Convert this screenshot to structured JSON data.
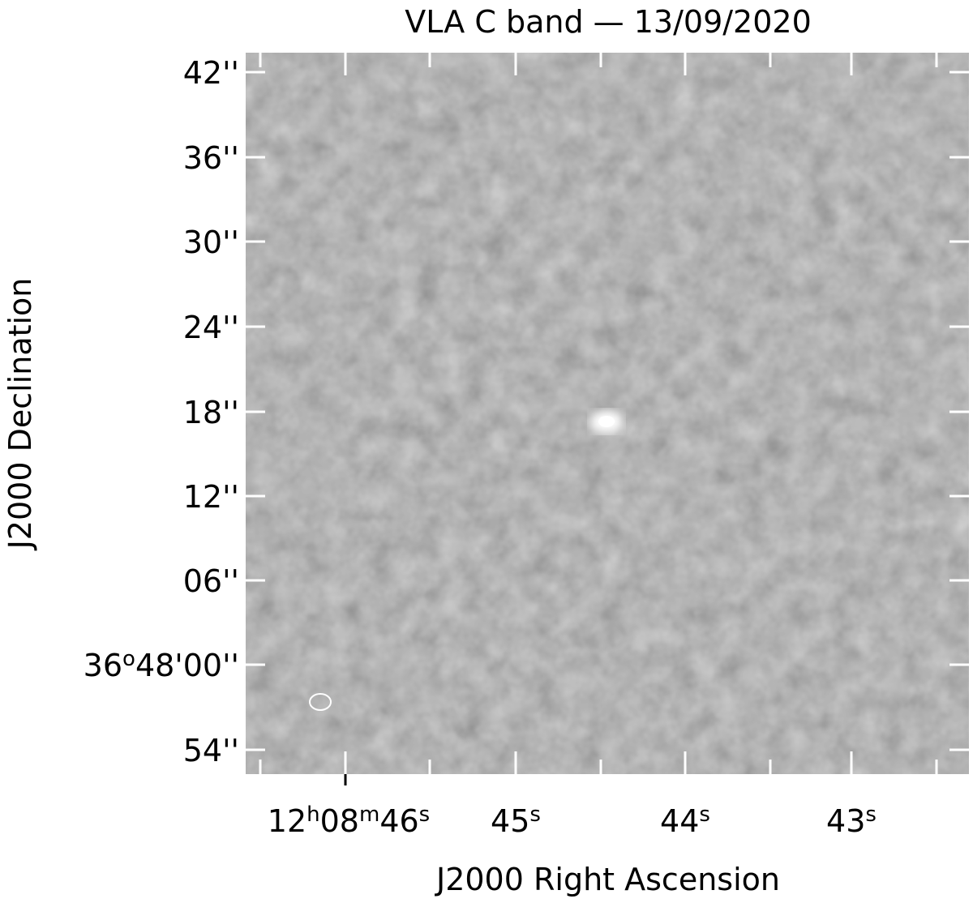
{
  "figure": {
    "title": "VLA C band — 13/09/2020",
    "x_label": "J2000 Right Ascension",
    "y_label": "J2000 Declination",
    "x_ticks": [
      {
        "label": [
          {
            "t": "12"
          },
          {
            "t": "h",
            "sup": true
          },
          {
            "t": "08"
          },
          {
            "t": "m",
            "sup": true
          },
          {
            "t": "46"
          },
          {
            "t": "s",
            "sup": true
          }
        ]
      },
      {
        "label": [
          {
            "t": "45"
          },
          {
            "t": "s",
            "sup": true
          }
        ]
      },
      {
        "label": [
          {
            "t": "44"
          },
          {
            "t": "s",
            "sup": true
          }
        ]
      },
      {
        "label": [
          {
            "t": "43"
          },
          {
            "t": "s",
            "sup": true
          }
        ]
      }
    ],
    "y_ticks": [
      {
        "label": [
          {
            "t": "42''"
          }
        ]
      },
      {
        "label": [
          {
            "t": "36''"
          }
        ]
      },
      {
        "label": [
          {
            "t": "30''"
          }
        ]
      },
      {
        "label": [
          {
            "t": "24''"
          }
        ]
      },
      {
        "label": [
          {
            "t": "18''"
          }
        ]
      },
      {
        "label": [
          {
            "t": "12''"
          }
        ]
      },
      {
        "label": [
          {
            "t": "06''"
          }
        ]
      },
      {
        "label": [
          {
            "t": "36"
          },
          {
            "t": "o",
            "sup": true
          },
          {
            "t": "48'00''"
          }
        ]
      },
      {
        "label": [
          {
            "t": "54''"
          }
        ]
      }
    ]
  }
}
